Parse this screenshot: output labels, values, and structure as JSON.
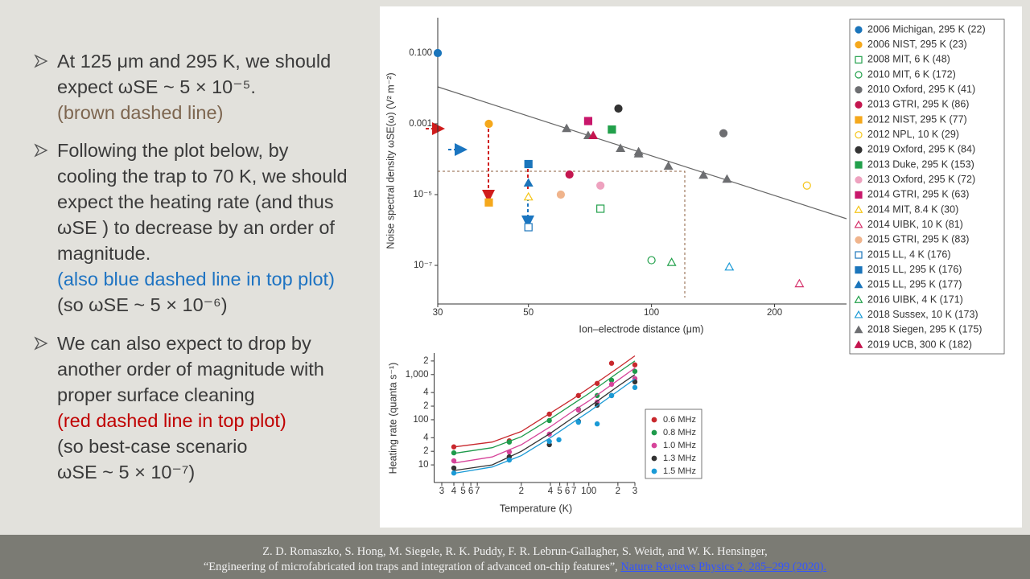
{
  "bullets": [
    {
      "text": "At 125 μm and 295 K, we should expect ωSE ~ 5 × 10⁻⁵.",
      "notes": [
        "(brown dashed line)"
      ]
    },
    {
      "text": "Following the plot below, by cooling the trap to 70 K, we should expect the heating rate (and thus ωSE ) to decrease by an order of magnitude.",
      "notes": [
        "(also blue dashed line in top plot)",
        "(so ωSE ~ 5 × 10⁻⁶)"
      ]
    },
    {
      "text": "We can also expect to drop by another order of magnitude with proper surface cleaning",
      "notes": [
        "(red dashed line in top plot)",
        "(so best-case scenario ωSE ~ 5 × 10⁻⁷)"
      ]
    }
  ],
  "citation": {
    "authors": "Z. D. Romaszko, S. Hong, M. Siegele, R. K. Puddy, F. R. Lebrun-Gallagher, S. Weidt, and W. K. Hensinger,",
    "title": "“Engineering of microfabricated ion traps and integration of advanced on-chip features”,",
    "link": "Nature Reviews Physics 2, 285–299 (2020)."
  },
  "chart_data": [
    {
      "type": "scatter",
      "xlabel": "Ion–electrode distance (μm)",
      "ylabel": "Noise spectral density ωSE(ω) (V² m⁻²)",
      "xscale": "log",
      "yscale": "log",
      "xlim": [
        30,
        300
      ],
      "ylim": [
        1e-08,
        1
      ],
      "xticks": [
        30,
        50,
        100,
        200
      ],
      "yticks": [
        {
          "value": 0.1,
          "label": "0.100"
        },
        0.001,
        {
          "value": 1e-05,
          "label": "10⁻⁵"
        },
        {
          "value": 1e-07,
          "label": "10⁻⁷"
        }
      ],
      "legend": "right",
      "series": [
        {
          "name": "2006 Michigan, 295 K (22)",
          "color": "#1b75bb",
          "marker": "circle",
          "filled": true,
          "x": [
            30
          ],
          "values": [
            0.1
          ]
        },
        {
          "name": "2006 NIST, 295 K (23)",
          "color": "#f5a81c",
          "marker": "circle",
          "filled": true,
          "x": [
            40
          ],
          "values": [
            0.001
          ]
        },
        {
          "name": "2008 MIT, 6 K (48)",
          "color": "#22a04b",
          "marker": "square",
          "filled": false,
          "x": [
            75
          ],
          "values": [
            4e-06
          ]
        },
        {
          "name": "2010 MIT, 6 K (172)",
          "color": "#22a04b",
          "marker": "circle",
          "filled": false,
          "x": [
            100
          ],
          "values": [
            1.4e-07
          ]
        },
        {
          "name": "2010 Oxford, 295 K (41)",
          "color": "#6d6e71",
          "marker": "circle",
          "filled": true,
          "x": [
            150
          ],
          "values": [
            0.00054
          ]
        },
        {
          "name": "2013 GTRI, 295 K (86)",
          "color": "#c4164f",
          "marker": "circle",
          "filled": true,
          "x": [
            63
          ],
          "values": [
            3.7e-05
          ]
        },
        {
          "name": "2012 NIST, 295 K (77)",
          "color": "#f5a81c",
          "marker": "square",
          "filled": true,
          "x": [
            40
          ],
          "values": [
            6e-06
          ]
        },
        {
          "name": "2012 NPL, 10 K (29)",
          "color": "#f5c518",
          "marker": "circle",
          "filled": false,
          "x": [
            240
          ],
          "values": [
            1.8e-05
          ]
        },
        {
          "name": "2019 Oxford, 295 K (84)",
          "color": "#333333",
          "marker": "circle",
          "filled": true,
          "x": [
            83
          ],
          "values": [
            0.0027
          ]
        },
        {
          "name": "2013 Duke, 295 K (153)",
          "color": "#22a04b",
          "marker": "square",
          "filled": true,
          "x": [
            80
          ],
          "values": [
            0.00069
          ]
        },
        {
          "name": "2013 Oxford, 295 K (72)",
          "color": "#eea2bf",
          "marker": "circle",
          "filled": true,
          "x": [
            75
          ],
          "values": [
            1.8e-05
          ]
        },
        {
          "name": "2014 GTRI, 295 K (63)",
          "color": "#c8176b",
          "marker": "square",
          "filled": true,
          "x": [
            70
          ],
          "values": [
            0.0012
          ]
        },
        {
          "name": "2014 MIT, 8.4 K (30)",
          "color": "#f5c518",
          "marker": "triangle",
          "filled": false,
          "x": [
            50
          ],
          "values": [
            8.5e-06
          ]
        },
        {
          "name": "2014 UIBK, 10 K (81)",
          "color": "#d6336c",
          "marker": "triangle",
          "filled": false,
          "x": [
            230
          ],
          "values": [
            3e-08
          ]
        },
        {
          "name": "2015 GTRI, 295 K (83)",
          "color": "#f0b48c",
          "marker": "circle",
          "filled": true,
          "x": [
            60
          ],
          "values": [
            1e-05
          ]
        },
        {
          "name": "2015 LL, 4 K (176)",
          "color": "#1b75bb",
          "marker": "square",
          "filled": false,
          "x": [
            50
          ],
          "values": [
            1.2e-06
          ]
        },
        {
          "name": "2015 LL, 295 K (176)",
          "color": "#1b75bb",
          "marker": "square",
          "filled": true,
          "x": [
            50
          ],
          "values": [
            7.3e-05
          ]
        },
        {
          "name": "2015 LL, 295 K (177)",
          "color": "#1b75bb",
          "marker": "triangle",
          "filled": true,
          "x": [
            50
          ],
          "values": [
            2.1e-05
          ]
        },
        {
          "name": "2016 UIBK, 4 K (171)",
          "color": "#22a04b",
          "marker": "triangle",
          "filled": false,
          "x": [
            112
          ],
          "values": [
            1.2e-07
          ]
        },
        {
          "name": "2018 Sussex, 10 K (173)",
          "color": "#1b9ad6",
          "marker": "triangle",
          "filled": false,
          "x": [
            155
          ],
          "values": [
            8.9e-08
          ]
        },
        {
          "name": "2018 Siegen, 295 K (175)",
          "color": "#6d6e71",
          "marker": "triangle",
          "filled": true,
          "x": [
            62,
            70,
            84,
            93,
            93,
            110,
            134,
            153
          ],
          "values": [
            0.00073,
            0.00046,
            0.0002,
            0.00016,
            0.00014,
            6.3e-05,
            3.5e-05,
            2.7e-05
          ]
        },
        {
          "name": "2019 UCB, 300 K (182)",
          "color": "#c4164f",
          "marker": "triangle",
          "filled": true,
          "x": [
            72
          ],
          "values": [
            0.00046
          ]
        }
      ]
    },
    {
      "type": "line",
      "xlabel": "Temperature (K)",
      "ylabel": "Heating rate (quanta s⁻¹)",
      "xscale": "log",
      "yscale": "log",
      "xlim": [
        2.5,
        300
      ],
      "ylim": [
        5,
        3000
      ],
      "xticks": [
        3,
        4,
        5,
        6,
        7,
        {
          "value": 20,
          "label": "2"
        },
        {
          "value": 40,
          "label": "4"
        },
        {
          "value": 50,
          "label": "5"
        },
        {
          "value": 60,
          "label": "6"
        },
        {
          "value": 70,
          "label": "7"
        },
        100,
        {
          "value": 200,
          "label": "2"
        },
        {
          "value": 300,
          "label": "3"
        }
      ],
      "yticks": [
        {
          "value": 2000,
          "label": "2"
        },
        {
          "value": 1000,
          "label": "1,000"
        },
        {
          "value": 400,
          "label": "4"
        },
        {
          "value": 200,
          "label": "2"
        },
        100,
        {
          "value": 40,
          "label": "4"
        },
        {
          "value": 20,
          "label": "2"
        },
        10
      ],
      "legend": "right",
      "fit_x": [
        4,
        10,
        20,
        40,
        70,
        100,
        200,
        300
      ],
      "series": [
        {
          "name": "0.6 MHz",
          "color": "#c8282d",
          "marker": "circle",
          "filled": true,
          "x": [
            4,
            15,
            39,
            78,
            122,
            172,
            300
          ],
          "values": [
            25,
            34,
            133,
            343,
            637,
            1780,
            1640
          ],
          "fit": [
            25,
            32,
            55,
            140,
            300,
            500,
            1400,
            2600
          ]
        },
        {
          "name": "0.8 MHz",
          "color": "#1e9a4b",
          "marker": "circle",
          "filled": true,
          "x": [
            4,
            15,
            39,
            78,
            122,
            172,
            300
          ],
          "values": [
            18.5,
            32,
            96,
            171,
            343,
            750,
            1180
          ],
          "fit": [
            18,
            24,
            42,
            105,
            230,
            380,
            1100,
            2000
          ]
        },
        {
          "name": "1.0 MHz",
          "color": "#d6449a",
          "marker": "circle",
          "filled": true,
          "x": [
            4,
            15,
            39,
            78,
            122,
            172,
            300
          ],
          "values": [
            12.3,
            19.3,
            48,
            164,
            247,
            610,
            815
          ],
          "fit": [
            11,
            15,
            28,
            70,
            160,
            260,
            750,
            1400
          ]
        },
        {
          "name": "1.3 MHz",
          "color": "#333333",
          "marker": "circle",
          "filled": true,
          "x": [
            4,
            15,
            39,
            78,
            122,
            172,
            300
          ],
          "values": [
            8.5,
            15.1,
            28,
            92,
            210,
            343,
            690
          ],
          "fit": [
            7.5,
            10,
            20,
            50,
            115,
            190,
            550,
            1000
          ]
        },
        {
          "name": "1.5 MHz",
          "color": "#1a9ad6",
          "marker": "circle",
          "filled": true,
          "x": [
            4,
            15,
            39,
            49,
            78,
            122,
            172,
            300
          ],
          "values": [
            6.6,
            12.8,
            33,
            36,
            88,
            81,
            343,
            518
          ],
          "fit": [
            6.5,
            9,
            16,
            40,
            90,
            150,
            430,
            800
          ]
        }
      ]
    }
  ]
}
